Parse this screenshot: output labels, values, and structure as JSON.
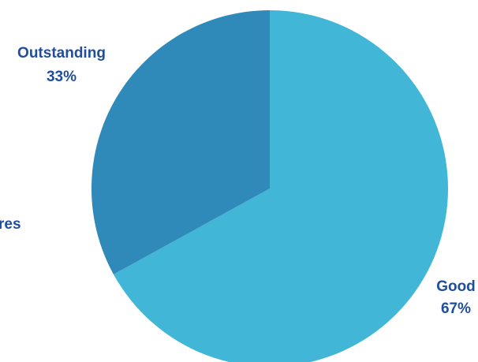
{
  "chart_data": {
    "type": "pie",
    "slices": [
      {
        "label": "Good",
        "value": 67,
        "display": "67%",
        "color": "#41b6d6"
      },
      {
        "label": "Outstanding",
        "value": 33,
        "display": "33%",
        "color": "#2f89b9"
      },
      {
        "label": "res",
        "value": 0,
        "display": "",
        "color": "#2f89b9"
      }
    ],
    "label_color": "#1f4e9c",
    "legend": "none"
  }
}
